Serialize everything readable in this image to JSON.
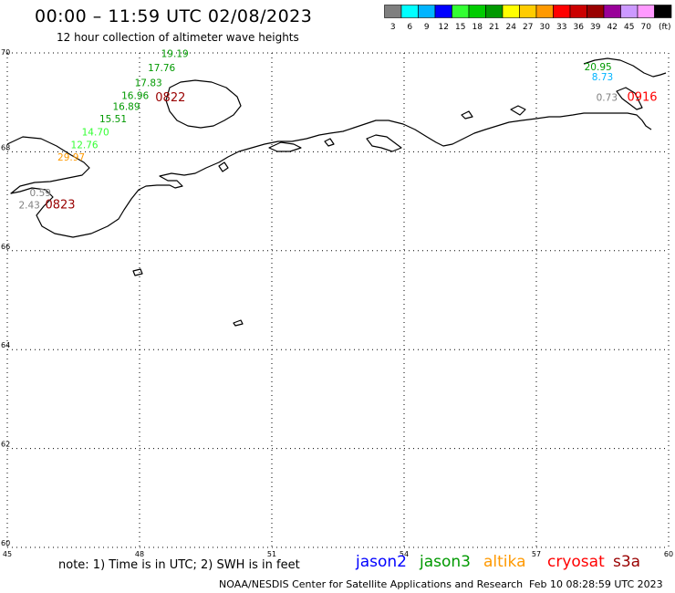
{
  "header": {
    "title": "00:00 – 11:59 UTC 02/08/2023",
    "subtitle": "12 hour collection of altimeter wave heights"
  },
  "colorbar": {
    "colors": [
      "#7f7f7f",
      "#00ffff",
      "#00b4ff",
      "#0000ff",
      "#33ff33",
      "#00cc00",
      "#009900",
      "#ffff00",
      "#ffcc00",
      "#ff9900",
      "#ff0000",
      "#cc0000",
      "#990000",
      "#990099",
      "#cc99ff",
      "#ff99ff",
      "#000000"
    ],
    "labels": [
      "3",
      "6",
      "9",
      "12",
      "15",
      "18",
      "21",
      "24",
      "27",
      "30",
      "33",
      "36",
      "39",
      "42",
      "45",
      "70",
      "(ft)"
    ]
  },
  "map": {
    "lon_range": [
      45,
      60
    ],
    "lat_range": [
      60,
      70
    ],
    "lon_ticks": [
      "45",
      "48",
      "51",
      "54",
      "57",
      "60"
    ],
    "lat_ticks": [
      "70",
      "68",
      "66",
      "64",
      "62",
      "60"
    ],
    "grid": "dotted",
    "measurements": [
      {
        "text": "19.19",
        "lon": 48.8,
        "lat": 69.92,
        "color": "#009900"
      },
      {
        "text": "17.76",
        "lon": 48.5,
        "lat": 69.63,
        "color": "#009900"
      },
      {
        "text": "17.83",
        "lon": 48.2,
        "lat": 69.33,
        "color": "#009900"
      },
      {
        "text": "16.96",
        "lon": 47.9,
        "lat": 69.07,
        "color": "#009900"
      },
      {
        "text": "16.89",
        "lon": 47.7,
        "lat": 68.85,
        "color": "#009900"
      },
      {
        "text": "15.51",
        "lon": 47.4,
        "lat": 68.6,
        "color": "#009900"
      },
      {
        "text": "14.70",
        "lon": 47.0,
        "lat": 68.33,
        "color": "#33ff33"
      },
      {
        "text": "12.76",
        "lon": 46.75,
        "lat": 68.07,
        "color": "#33ff33"
      },
      {
        "text": "29.97",
        "lon": 46.45,
        "lat": 67.82,
        "color": "#ff9900"
      },
      {
        "text": "0.59",
        "lon": 45.75,
        "lat": 67.1,
        "color": "#7f7f7f"
      },
      {
        "text": "2.43",
        "lon": 45.5,
        "lat": 66.85,
        "color": "#7f7f7f"
      },
      {
        "text": "20.95",
        "lon": 58.4,
        "lat": 69.65,
        "color": "#009900"
      },
      {
        "text": "8.73",
        "lon": 58.5,
        "lat": 69.45,
        "color": "#00b4ff"
      },
      {
        "text": "0.73",
        "lon": 58.6,
        "lat": 69.03,
        "color": "#7f7f7f"
      }
    ],
    "time_labels": [
      {
        "text": "0822",
        "lon": 48.7,
        "lat": 69.02,
        "color": "#990000"
      },
      {
        "text": "0823",
        "lon": 46.2,
        "lat": 66.85,
        "color": "#990000"
      },
      {
        "text": "0916",
        "lon": 59.4,
        "lat": 69.03,
        "color": "#ff0000"
      }
    ]
  },
  "note": "note: 1) Time is in UTC; 2) SWH is in feet",
  "legend": [
    {
      "label": "jason2",
      "color": "#0000ff"
    },
    {
      "label": "jason3",
      "color": "#009900"
    },
    {
      "label": "altika",
      "color": "#ff9900"
    },
    {
      "label": "cryosat",
      "color": "#ff0000"
    },
    {
      "label": "s3a",
      "color": "#990000"
    }
  ],
  "footer": {
    "credit": "NOAA/NESDIS Center for Satellite Applications and Research",
    "timestamp": "Feb 10 08:28:59 UTC 2023"
  }
}
